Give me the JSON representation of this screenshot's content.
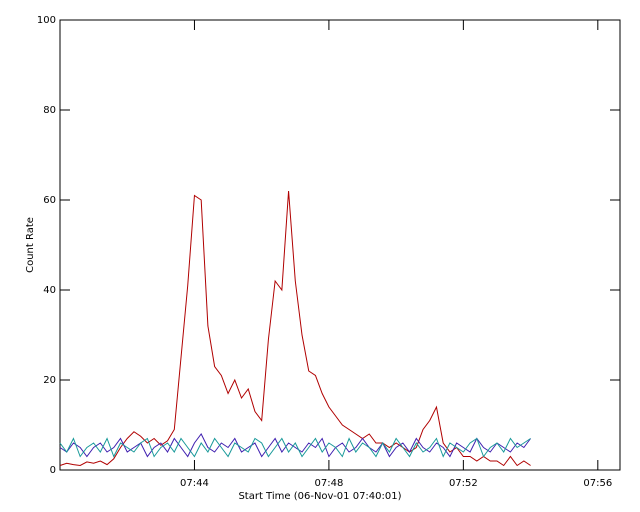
{
  "chart_data": {
    "type": "line",
    "xlabel": "Start Time (06-Nov-01 07:40:01)",
    "ylabel": "Count Rate",
    "x": [
      0,
      0.2,
      0.4,
      0.6,
      0.8,
      1.0,
      1.2,
      1.4,
      1.6,
      1.8,
      2.0,
      2.2,
      2.4,
      2.6,
      2.8,
      3.0,
      3.2,
      3.4,
      3.6,
      3.8,
      4.0,
      4.2,
      4.4,
      4.6,
      4.8,
      5.0,
      5.2,
      5.4,
      5.6,
      5.8,
      6.0,
      6.2,
      6.4,
      6.6,
      6.8,
      7.0,
      7.2,
      7.4,
      7.6,
      7.8,
      8.0,
      8.2,
      8.4,
      8.6,
      8.8,
      9.0,
      9.2,
      9.4,
      9.6,
      9.8,
      10.0,
      10.2,
      10.4,
      10.6,
      10.8,
      11.0,
      11.2,
      11.4,
      11.6,
      11.8,
      12.0,
      12.2,
      12.4,
      12.6,
      12.8,
      13.0,
      13.2,
      13.4,
      13.6,
      13.8,
      14.0
    ],
    "series": [
      {
        "color": "#b00000",
        "values": [
          1.0,
          1.5,
          1.2,
          1.0,
          1.8,
          1.5,
          2.0,
          1.2,
          2.5,
          5,
          7,
          8.5,
          7.5,
          6,
          7,
          5.5,
          6.5,
          9,
          25,
          41,
          61,
          60,
          32,
          23,
          21,
          17,
          20,
          16,
          18,
          13,
          11,
          29,
          42,
          40,
          62,
          42,
          30,
          22,
          21,
          17,
          14,
          12,
          10,
          9,
          8,
          7,
          8,
          6,
          6,
          5,
          6,
          5,
          4,
          5,
          9,
          11,
          14,
          6,
          4,
          5,
          3,
          3,
          2,
          3,
          2,
          2,
          1,
          3,
          1,
          2,
          1
        ]
      },
      {
        "color": "#4020b0",
        "values": [
          5,
          4,
          6,
          5,
          3,
          5,
          6,
          4,
          5,
          7,
          4,
          5,
          6,
          3,
          5,
          6,
          4,
          7,
          5,
          3,
          6,
          8,
          5,
          4,
          6,
          5,
          7,
          4,
          5,
          6,
          3,
          5,
          7,
          4,
          6,
          5,
          4,
          6,
          5,
          7,
          3,
          5,
          6,
          4,
          5,
          7,
          5,
          4,
          6,
          3,
          5,
          6,
          4,
          7,
          5,
          4,
          6,
          5,
          3,
          6,
          5,
          4,
          7,
          5,
          4,
          6,
          5,
          4,
          6,
          5,
          7
        ]
      },
      {
        "color": "#1a9a9a",
        "values": [
          6,
          4,
          7,
          3,
          5,
          6,
          4,
          7,
          3,
          6,
          5,
          4,
          6,
          7,
          3,
          5,
          6,
          4,
          7,
          5,
          3,
          6,
          4,
          7,
          5,
          3,
          6,
          5,
          4,
          7,
          6,
          3,
          5,
          7,
          4,
          6,
          3,
          5,
          7,
          4,
          6,
          5,
          3,
          7,
          4,
          6,
          5,
          3,
          6,
          4,
          7,
          5,
          3,
          6,
          4,
          5,
          7,
          3,
          6,
          5,
          4,
          6,
          7,
          3,
          5,
          6,
          4,
          7,
          5,
          6,
          7
        ]
      }
    ],
    "xlim": [
      0,
      16.66
    ],
    "xticks": [
      {
        "value": 4,
        "label": "07:44"
      },
      {
        "value": 8,
        "label": "07:48"
      },
      {
        "value": 12,
        "label": "07:52"
      },
      {
        "value": 16,
        "label": "07:56"
      }
    ],
    "ylim": [
      0,
      100
    ],
    "yticks": [
      0,
      20,
      40,
      60,
      80,
      100
    ]
  }
}
